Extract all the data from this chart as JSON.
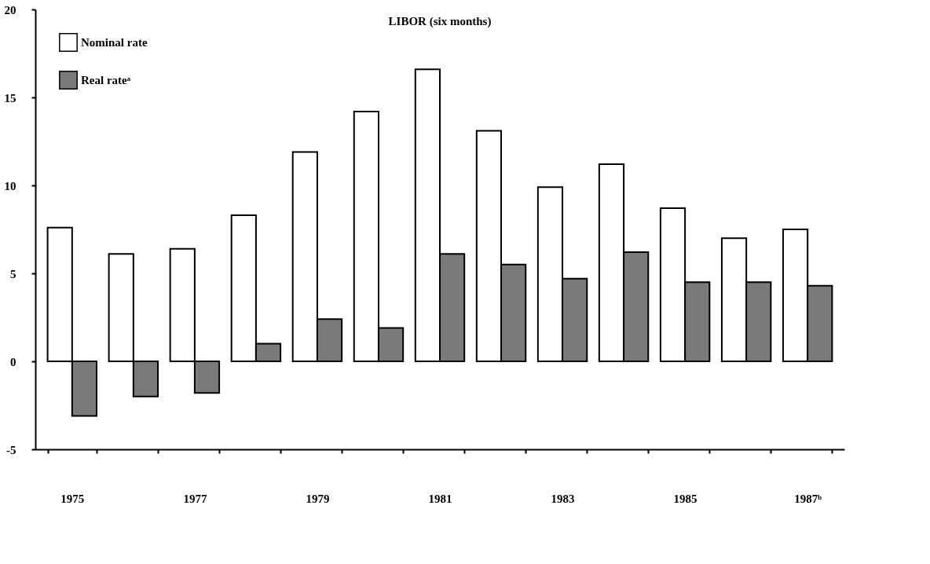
{
  "chart_data": {
    "type": "bar",
    "title": "LIBOR (six months)",
    "categories": [
      "1975",
      null,
      "1977",
      null,
      "1979",
      null,
      "1981",
      null,
      "1983",
      null,
      "1985",
      null,
      "1987ᵇ"
    ],
    "series": [
      {
        "name": "Nominal rate",
        "color": "#ffffff",
        "values": [
          7.6,
          6.1,
          6.4,
          8.3,
          11.9,
          14.2,
          16.6,
          13.1,
          9.9,
          11.2,
          8.7,
          7.0,
          7.5
        ]
      },
      {
        "name": "Real rateᵃ",
        "color": "#7a7a7a",
        "values": [
          -3.1,
          -2.0,
          -1.8,
          1.0,
          2.4,
          1.9,
          6.1,
          5.5,
          4.7,
          6.2,
          4.5,
          4.5,
          4.3
        ]
      }
    ],
    "ylim": [
      -5,
      20
    ],
    "yticks": [
      -5,
      0,
      5,
      10,
      15,
      20
    ],
    "grid": false,
    "legend": "top left"
  }
}
